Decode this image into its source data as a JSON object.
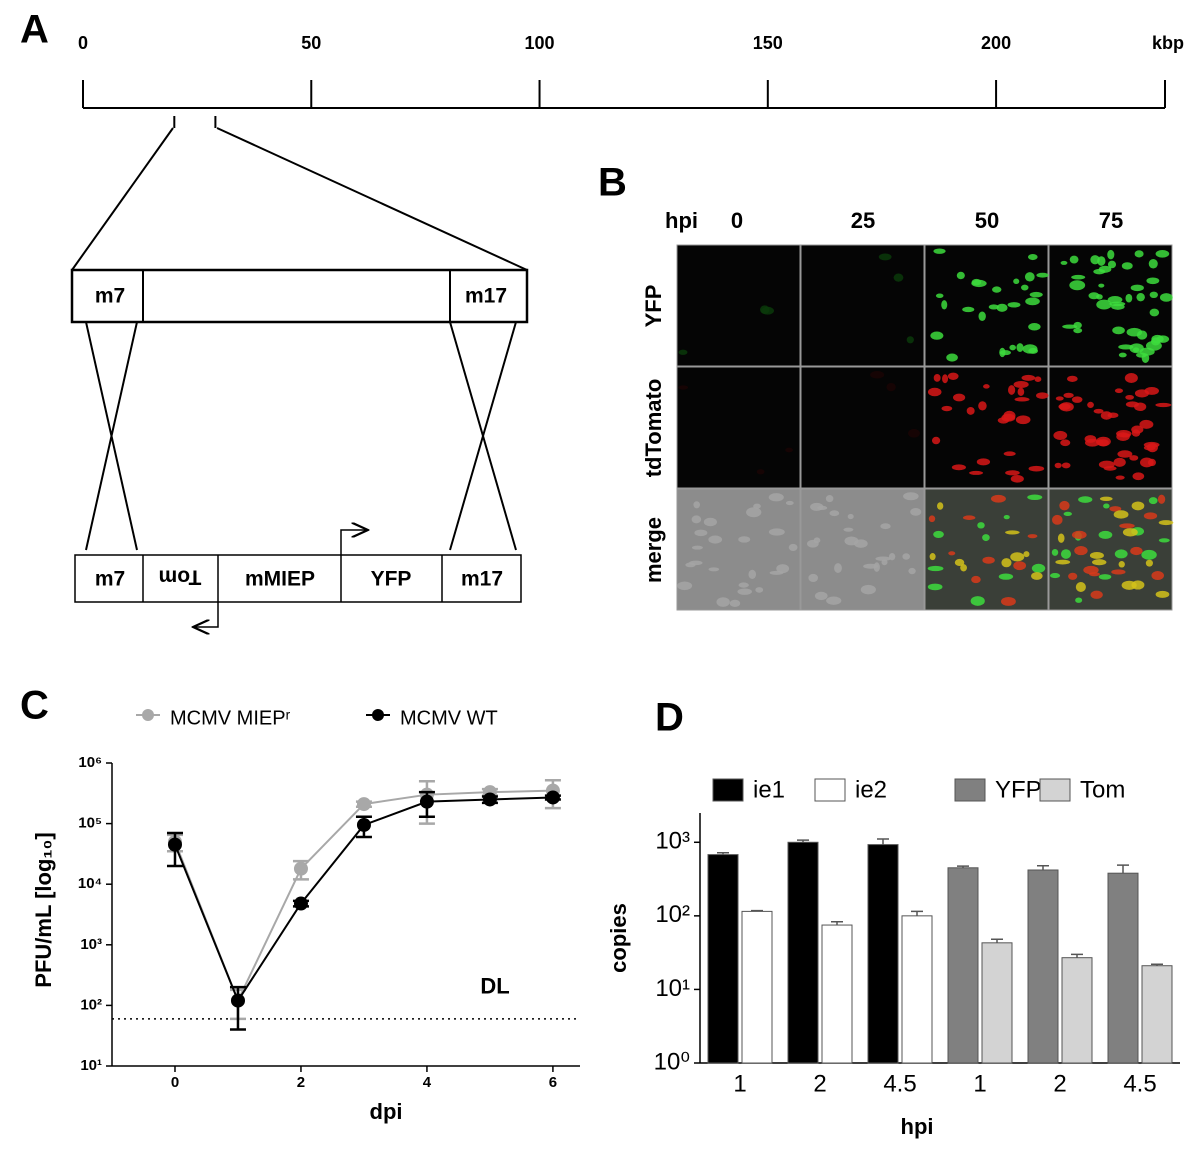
{
  "panel_a": {
    "label": "A",
    "type": "scale",
    "xlim": [
      0,
      237
    ],
    "xticks": [
      0,
      50,
      100,
      150,
      200
    ],
    "unit": "kbp",
    "region": [
      20,
      29
    ],
    "top_box": [
      "m7",
      "m17"
    ],
    "bottom_box": [
      "m7",
      "Tom",
      "mMIEP",
      "YFP",
      "m17"
    ]
  },
  "panel_b": {
    "label": "B",
    "header": "hpi",
    "columns": [
      0,
      25,
      50,
      75
    ],
    "rows": [
      "YFP",
      "tdTomato",
      "merge"
    ]
  },
  "chart_data": [
    {
      "type": "line",
      "panel": "C",
      "x_label": "dpi",
      "y_label": "PFU/mL [log₁₀]",
      "log_y": true,
      "x": [
        0,
        1,
        2,
        3,
        4,
        5,
        6
      ],
      "xlim": [
        -1,
        6.43
      ],
      "xticks": [
        0,
        2,
        4,
        6
      ],
      "ylim": [
        10,
        1000000
      ],
      "yticks": [
        {
          "value": 10,
          "label": "10¹"
        },
        {
          "value": 100,
          "label": "10²"
        },
        {
          "value": 1000,
          "label": "10³"
        },
        {
          "value": 10000,
          "label": "10⁴"
        },
        {
          "value": 100000,
          "label": "10⁵"
        },
        {
          "value": 1000000,
          "label": "10⁶"
        }
      ],
      "legend": "top",
      "series": [
        {
          "name": "MCMV MIEPʳ",
          "color": "#a8a8a8",
          "values": [
            50000,
            120,
            18000,
            210000,
            300000,
            330000,
            350000
          ],
          "errors": [
            15000,
            60,
            6000,
            20000,
            200000,
            40000,
            170000
          ]
        },
        {
          "name": "MCMV WT",
          "color": "#000000",
          "values": [
            45000,
            120,
            4800,
            95000,
            230000,
            250000,
            270000
          ],
          "errors": [
            25000,
            80,
            500,
            35000,
            100000,
            30000,
            20000
          ]
        }
      ],
      "detection_limit": 60,
      "detection_label": "DL"
    },
    {
      "type": "bar",
      "panel": "D",
      "x_label": "hpi",
      "y_label": "copies",
      "log_y": true,
      "categories": [
        "1",
        "2",
        "4.5",
        "1",
        "2",
        "4.5"
      ],
      "ylim": [
        1,
        2500
      ],
      "yticks": [
        {
          "value": 1,
          "label": "10⁰"
        },
        {
          "value": 10,
          "label": "10¹"
        },
        {
          "value": 100,
          "label": "10²"
        },
        {
          "value": 1000,
          "label": "10³"
        }
      ],
      "legend": "top",
      "series": [
        {
          "name": "ie1",
          "color": "#000000",
          "values": [
            680,
            1000,
            930,
            null,
            null,
            null
          ],
          "errors": [
            40,
            70,
            180,
            null,
            null,
            null
          ]
        },
        {
          "name": "ie2",
          "color": "#ffffff",
          "values": [
            115,
            75,
            100,
            null,
            null,
            null
          ],
          "errors": [
            3,
            8,
            15,
            null,
            null,
            null
          ]
        },
        {
          "name": "YFP",
          "color": "#808080",
          "values": [
            null,
            null,
            null,
            450,
            420,
            380
          ],
          "errors": [
            null,
            null,
            null,
            25,
            60,
            110
          ]
        },
        {
          "name": "Tom",
          "color": "#d3d3d3",
          "values": [
            null,
            null,
            null,
            43,
            27,
            21
          ],
          "errors": [
            null,
            null,
            null,
            5,
            3,
            1
          ]
        }
      ]
    }
  ]
}
